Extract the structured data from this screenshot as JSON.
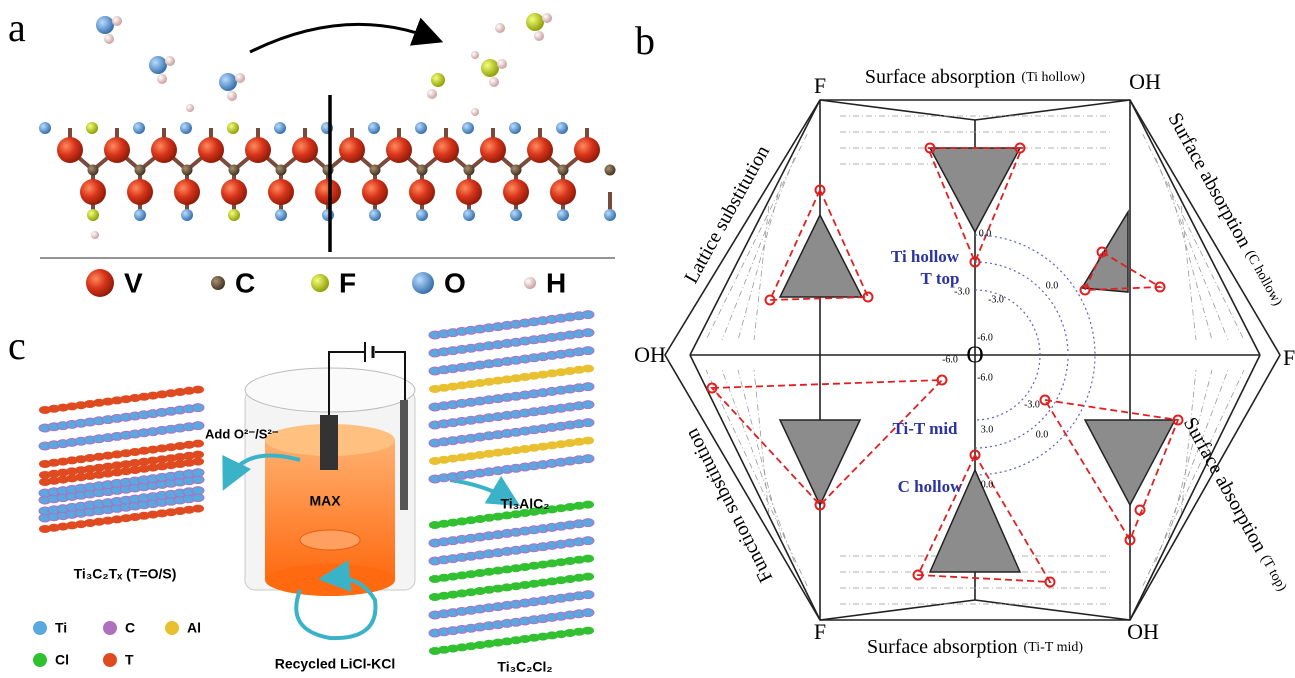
{
  "panel_a": {
    "label": "a",
    "legend": [
      "V",
      "C",
      "F",
      "O",
      "H"
    ]
  },
  "panel_b": {
    "label": "b",
    "corners": [
      "F",
      "OH",
      "F",
      "OH",
      "F",
      "OH"
    ],
    "center": "O",
    "sectors": [
      {
        "title": "Surface absorption",
        "note": "(Ti hollow)"
      },
      {
        "title": "Surface absorption",
        "note": "(C hollow)"
      },
      {
        "title": "Surface absorption",
        "note": "(T top)"
      },
      {
        "title": "Surface absorption",
        "note": "(Ti-T mid)"
      },
      {
        "title": "Function substitution"
      },
      {
        "title": "Lattice substitution"
      }
    ],
    "sites": [
      "Ti hollow",
      "T top",
      "Ti-T mid",
      "C hollow"
    ],
    "scale_labels": [
      "0.0",
      "-3.0",
      "-3.0",
      "-6.0",
      "-6.0",
      "-6.0",
      "3.0",
      "0.0",
      "-3.0",
      "0.0",
      "0.0"
    ]
  },
  "panel_c": {
    "label": "c",
    "reagent": "Add O²⁻/S²⁻",
    "precursor_tag": "MAX",
    "max_phase": "Ti₃AlC₂",
    "product": "Ti₃C₂Tₓ (T=O/S)",
    "chloride": "Ti₃C₂Cl₂",
    "salt": "Recycled LiCl-KCl",
    "legend": [
      "Ti",
      "C",
      "Al",
      "Cl",
      "T"
    ]
  }
}
